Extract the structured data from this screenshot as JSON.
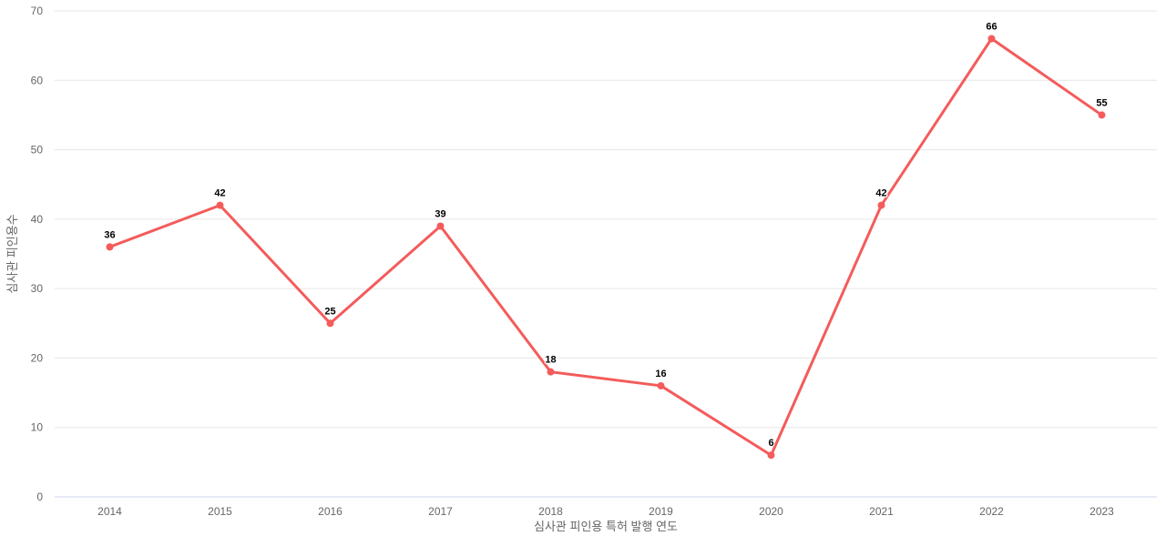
{
  "chart_data": {
    "type": "line",
    "categories": [
      "2014",
      "2015",
      "2016",
      "2017",
      "2018",
      "2019",
      "2020",
      "2021",
      "2022",
      "2023"
    ],
    "values": [
      36,
      42,
      25,
      39,
      18,
      16,
      6,
      42,
      66,
      55
    ],
    "title": "",
    "xlabel": "심사관 피인용 특허 발행 연도",
    "ylabel": "심사관 피인용수",
    "ylim": [
      0,
      70
    ],
    "y_ticks": [
      0,
      10,
      20,
      30,
      40,
      50,
      60,
      70
    ],
    "grid": "horizontal",
    "legend": "none",
    "data_labels_visible": true,
    "colors": {
      "series": "#f45b5b",
      "marker": "#f45b5b",
      "gridline": "#e6e6e6",
      "axis_line": "#ccd6eb",
      "tick_label": "#666666",
      "axis_title": "#666666",
      "data_label": "#000000",
      "background": "#ffffff"
    }
  }
}
